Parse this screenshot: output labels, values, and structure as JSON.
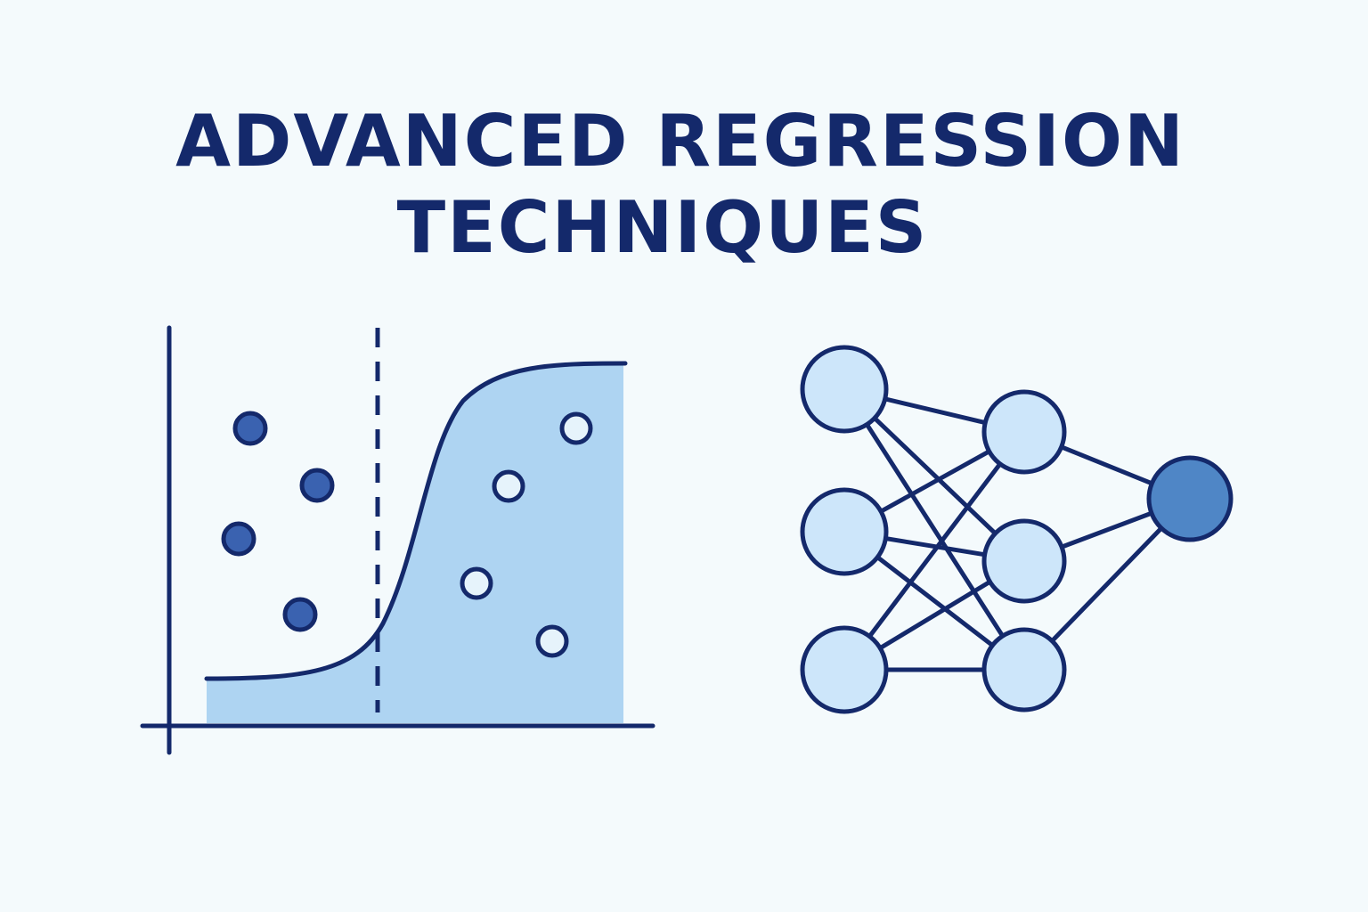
{
  "title": {
    "lines": [
      "ADVANCED REGRESSION",
      "TECHNIQUES"
    ]
  }
}
